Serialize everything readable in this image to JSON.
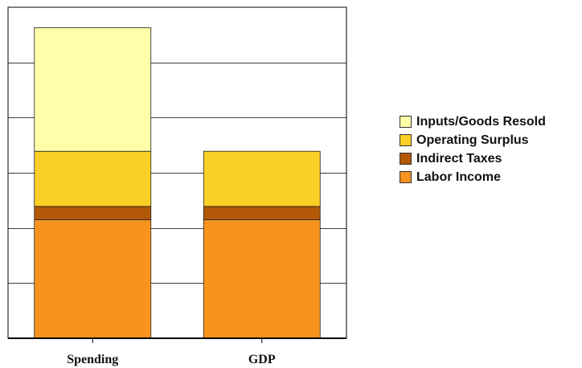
{
  "chart_data": {
    "type": "bar",
    "stacked": true,
    "categories": [
      "Spending",
      "GDP"
    ],
    "series": [
      {
        "name": "Labor Income",
        "color": "#f7931e",
        "values": [
          21.5,
          21.5
        ]
      },
      {
        "name": "Indirect Taxes",
        "color": "#b35806",
        "values": [
          2.4,
          2.4
        ]
      },
      {
        "name": "Operating Surplus",
        "color": "#fbd026",
        "values": [
          10.0,
          10.0
        ]
      },
      {
        "name": "Inputs/Goods Resold",
        "color": "#ffffaa",
        "values": [
          22.4,
          0
        ]
      }
    ],
    "ylim": [
      0,
      60
    ],
    "grid": true,
    "y_tick_labels_shown": false,
    "legend_position": "right",
    "title": "",
    "xlabel": "",
    "ylabel": ""
  }
}
